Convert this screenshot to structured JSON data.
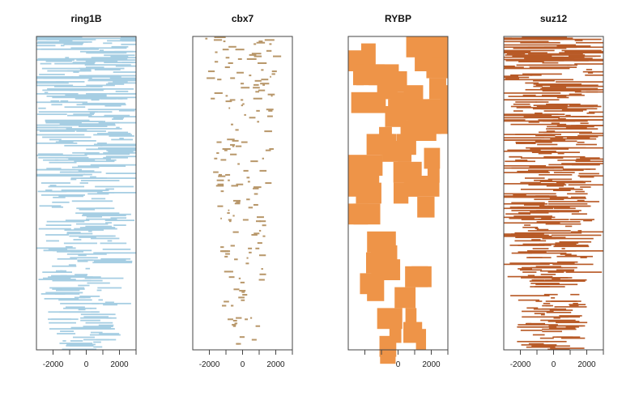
{
  "chart_data": [
    {
      "type": "heatmap",
      "title": "ring1B",
      "color": "#a6cee3",
      "xlim": [
        -3000,
        3000
      ],
      "ticks": [
        -2000,
        -1000,
        0,
        1000,
        2000,
        3000
      ],
      "tick_labels": [
        "-2000",
        "0",
        "2000"
      ],
      "density": "high"
    },
    {
      "type": "heatmap",
      "title": "cbx7",
      "color": "#b8976a",
      "xlim": [
        -3000,
        3000
      ],
      "ticks": [
        -2000,
        -1000,
        0,
        1000,
        2000,
        3000
      ],
      "tick_labels": [
        "-2000",
        "0",
        "2000"
      ],
      "density": "sparse"
    },
    {
      "type": "heatmap",
      "title": "RYBP",
      "color": "#ee9448",
      "xlim": [
        -3000,
        3000
      ],
      "ticks": [
        -2000,
        -1000,
        0,
        1000,
        2000,
        3000
      ],
      "tick_labels": [
        "0",
        "2000"
      ],
      "density": "very sparse, wide intervals"
    },
    {
      "type": "heatmap",
      "title": "suz12",
      "color": "#b85a27",
      "xlim": [
        -3000,
        3000
      ],
      "ticks": [
        -2000,
        -1000,
        0,
        1000,
        2000,
        3000
      ],
      "tick_labels": [
        "-2000",
        "0",
        "2000"
      ],
      "density": "very high"
    }
  ]
}
